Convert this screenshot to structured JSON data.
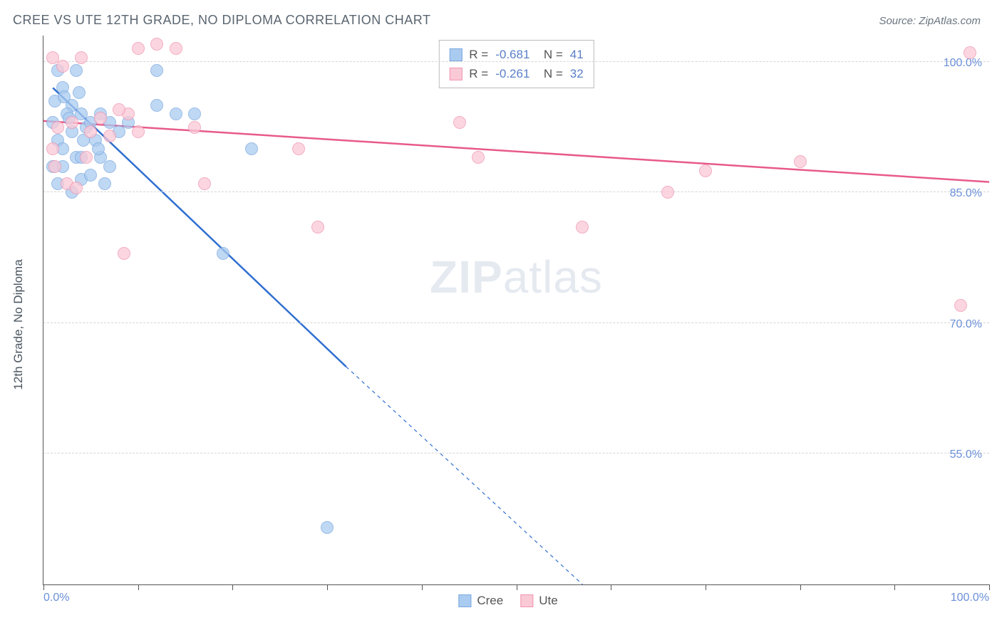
{
  "title": "CREE VS UTE 12TH GRADE, NO DIPLOMA CORRELATION CHART",
  "source": "Source: ZipAtlas.com",
  "y_axis_label": "12th Grade, No Diploma",
  "watermark": {
    "a": "ZIP",
    "b": "atlas"
  },
  "chart": {
    "type": "scatter",
    "xlim": [
      0,
      100
    ],
    "ylim": [
      40,
      103
    ],
    "x_ticks": [
      0,
      10,
      20,
      30,
      40,
      50,
      60,
      70,
      80,
      90,
      100
    ],
    "x_tick_labels": {
      "0": "0.0%",
      "100": "100.0%"
    },
    "y_grid": [
      55,
      70,
      85,
      100
    ],
    "y_tick_labels": {
      "55": "55.0%",
      "70": "70.0%",
      "85": "85.0%",
      "100": "100.0%"
    },
    "background_color": "#ffffff",
    "grid_color": "#d5d5d5",
    "point_radius": 9,
    "point_opacity": 0.75,
    "series": [
      {
        "name": "Cree",
        "fill": "#aacbf0",
        "stroke": "#7aa8e0",
        "R": "-0.681",
        "N": "41",
        "trend": {
          "solid": {
            "x1": 1.0,
            "y1": 97.0,
            "x2": 32,
            "y2": 65.0
          },
          "dashed": {
            "x1": 32,
            "y1": 65.0,
            "x2": 57,
            "y2": 40
          },
          "color": "#2f6fd0",
          "width": 2.5
        },
        "points": [
          {
            "x": 1.5,
            "y": 99
          },
          {
            "x": 2,
            "y": 97
          },
          {
            "x": 3,
            "y": 95
          },
          {
            "x": 3.5,
            "y": 99
          },
          {
            "x": 1,
            "y": 93
          },
          {
            "x": 2.5,
            "y": 94
          },
          {
            "x": 4,
            "y": 94
          },
          {
            "x": 3,
            "y": 92
          },
          {
            "x": 1.5,
            "y": 91
          },
          {
            "x": 2,
            "y": 90
          },
          {
            "x": 4.5,
            "y": 92.5
          },
          {
            "x": 5,
            "y": 93
          },
          {
            "x": 6,
            "y": 94
          },
          {
            "x": 3.5,
            "y": 89
          },
          {
            "x": 4,
            "y": 89
          },
          {
            "x": 2,
            "y": 88
          },
          {
            "x": 1,
            "y": 88
          },
          {
            "x": 5.5,
            "y": 91
          },
          {
            "x": 7,
            "y": 93
          },
          {
            "x": 6,
            "y": 89
          },
          {
            "x": 4,
            "y": 86.5
          },
          {
            "x": 8,
            "y": 92
          },
          {
            "x": 9,
            "y": 93
          },
          {
            "x": 7,
            "y": 88
          },
          {
            "x": 12,
            "y": 99
          },
          {
            "x": 12,
            "y": 95
          },
          {
            "x": 14,
            "y": 94
          },
          {
            "x": 16,
            "y": 94
          },
          {
            "x": 22,
            "y": 90
          },
          {
            "x": 19,
            "y": 78
          },
          {
            "x": 30,
            "y": 46.5
          },
          {
            "x": 1.5,
            "y": 86
          },
          {
            "x": 3,
            "y": 85
          },
          {
            "x": 5,
            "y": 87
          },
          {
            "x": 6.5,
            "y": 86
          },
          {
            "x": 2.7,
            "y": 93.5
          },
          {
            "x": 4.2,
            "y": 91
          },
          {
            "x": 5.8,
            "y": 90
          },
          {
            "x": 1.2,
            "y": 95.5
          },
          {
            "x": 2.2,
            "y": 96
          },
          {
            "x": 3.8,
            "y": 96.5
          }
        ]
      },
      {
        "name": "Ute",
        "fill": "#fac9d6",
        "stroke": "#f094b0",
        "R": "-0.261",
        "N": "32",
        "trend": {
          "solid": {
            "x1": 0,
            "y1": 93.2,
            "x2": 100,
            "y2": 86.2
          },
          "color": "#e85a8a",
          "width": 2.5
        },
        "points": [
          {
            "x": 1,
            "y": 100.5
          },
          {
            "x": 2,
            "y": 99.5
          },
          {
            "x": 4,
            "y": 100.5
          },
          {
            "x": 10,
            "y": 101.5
          },
          {
            "x": 12,
            "y": 102
          },
          {
            "x": 14,
            "y": 101.5
          },
          {
            "x": 9,
            "y": 94
          },
          {
            "x": 1.5,
            "y": 92.5
          },
          {
            "x": 3,
            "y": 93
          },
          {
            "x": 6,
            "y": 93.5
          },
          {
            "x": 8,
            "y": 94.5
          },
          {
            "x": 10,
            "y": 92
          },
          {
            "x": 16,
            "y": 92.5
          },
          {
            "x": 17,
            "y": 86
          },
          {
            "x": 27,
            "y": 90
          },
          {
            "x": 29,
            "y": 81
          },
          {
            "x": 44,
            "y": 93
          },
          {
            "x": 46,
            "y": 89
          },
          {
            "x": 57,
            "y": 81
          },
          {
            "x": 66,
            "y": 85
          },
          {
            "x": 70,
            "y": 87.5
          },
          {
            "x": 80,
            "y": 88.5
          },
          {
            "x": 98,
            "y": 101
          },
          {
            "x": 97,
            "y": 72
          },
          {
            "x": 2.5,
            "y": 86
          },
          {
            "x": 3.5,
            "y": 85.5
          },
          {
            "x": 1,
            "y": 90
          },
          {
            "x": 5,
            "y": 92
          },
          {
            "x": 7,
            "y": 91.5
          },
          {
            "x": 1.2,
            "y": 88
          },
          {
            "x": 4.5,
            "y": 89
          },
          {
            "x": 8.5,
            "y": 78
          }
        ]
      }
    ]
  },
  "legend_bottom": [
    {
      "name": "Cree",
      "fill": "#aacbf0",
      "stroke": "#7aa8e0"
    },
    {
      "name": "Ute",
      "fill": "#fac9d6",
      "stroke": "#f094b0"
    }
  ]
}
